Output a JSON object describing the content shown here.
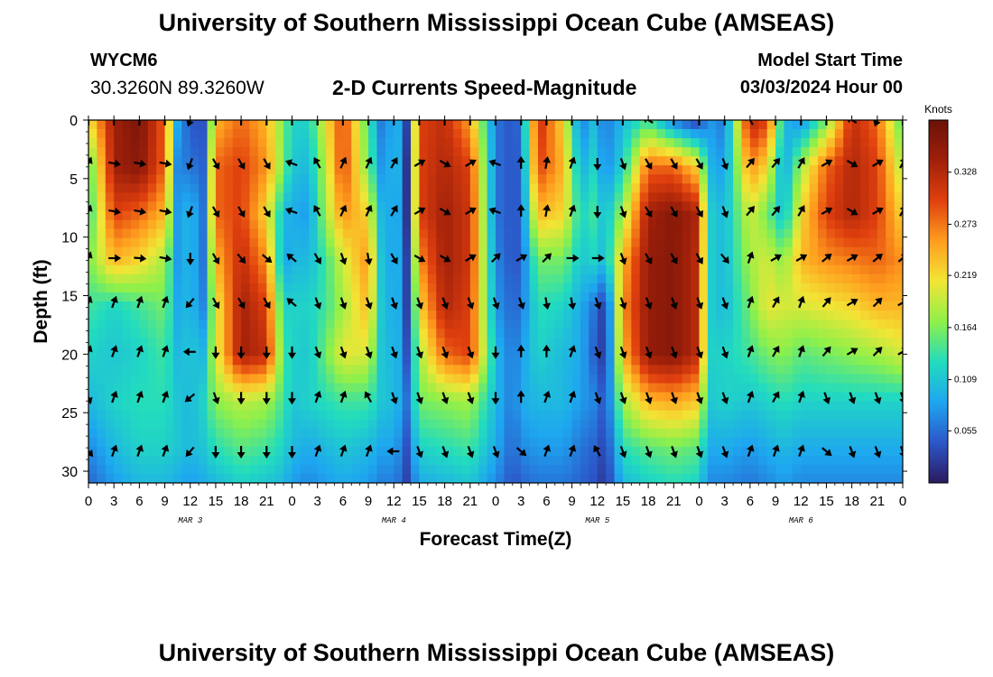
{
  "header": {
    "title": "University of Southern Mississippi Ocean Cube (AMSEAS)",
    "station_id": "WYCM6",
    "station_coords": "30.3260N  89.3260W",
    "chart_title": "2-D Currents Speed-Magnitude",
    "start_label": "Model Start Time",
    "start_value": "03/03/2024 Hour 00"
  },
  "footer": {
    "title": "University of Southern Mississippi Ocean Cube (AMSEAS)"
  },
  "chart_data": {
    "type": "heatmap",
    "title": "2-D Currents Speed-Magnitude",
    "xlabel": "Forecast Time(Z)",
    "ylabel": "Depth (ft)",
    "x_ticks": [
      "0",
      "3",
      "6",
      "9",
      "12",
      "15",
      "18",
      "21",
      "0",
      "3",
      "6",
      "9",
      "12",
      "15",
      "18",
      "21",
      "0",
      "3",
      "6",
      "9",
      "12",
      "15",
      "18",
      "21",
      "0",
      "3",
      "6",
      "9",
      "12",
      "15",
      "18",
      "21",
      "0"
    ],
    "date_labels": [
      {
        "label": "MAR 3",
        "hour": 12
      },
      {
        "label": "MAR 4",
        "hour": 36
      },
      {
        "label": "MAR 5",
        "hour": 60
      },
      {
        "label": "MAR 6",
        "hour": 84
      }
    ],
    "xlim_hours": [
      0,
      96
    ],
    "ylim_ft": [
      0,
      31
    ],
    "y_ticks": [
      0,
      5,
      10,
      15,
      20,
      25,
      30
    ],
    "colorbar": {
      "label": "Knots",
      "range": [
        0.0,
        0.383
      ],
      "ticks": [
        "0.328",
        "0.273",
        "0.219",
        "0.164",
        "0.109",
        "0.055"
      ],
      "tick_values": [
        0.328,
        0.273,
        0.219,
        0.164,
        0.109,
        0.055
      ],
      "colormap": [
        "#2a1a5e",
        "#2c56c8",
        "#1ea6f0",
        "#22dcbe",
        "#8ef04a",
        "#f2e535",
        "#ff9d1e",
        "#e0400e",
        "#a0200a",
        "#6a1208"
      ]
    },
    "speed_knots": {
      "depth_ft": [
        0,
        4,
        8,
        12,
        16,
        20,
        24,
        28,
        31
      ],
      "hours": [
        0,
        3,
        6,
        9,
        10.5,
        12,
        13.5,
        15,
        18,
        21,
        23,
        24,
        26,
        28,
        30,
        33,
        35,
        36,
        37.5,
        39,
        42,
        45,
        48,
        50,
        51,
        53,
        56,
        58,
        59.5,
        61,
        63,
        66,
        69,
        72,
        73,
        75,
        78,
        80,
        82,
        84,
        87,
        90,
        93,
        96
      ],
      "values": [
        [
          0.21,
          0.34,
          0.37,
          0.28,
          0.09,
          0.04,
          0.04,
          0.24,
          0.28,
          0.24,
          0.16,
          0.12,
          0.12,
          0.21,
          0.3,
          0.14,
          0.04,
          0.12,
          0.03,
          0.3,
          0.32,
          0.25,
          0.06,
          0.04,
          0.06,
          0.32,
          0.22,
          0.06,
          0.1,
          0.06,
          0.1,
          0.14,
          0.06,
          0.02,
          0.08,
          0.06,
          0.33,
          0.3,
          0.1,
          0.07,
          0.16,
          0.32,
          0.28,
          0.14
        ],
        [
          0.14,
          0.34,
          0.36,
          0.28,
          0.07,
          0.06,
          0.05,
          0.28,
          0.3,
          0.26,
          0.16,
          0.11,
          0.1,
          0.19,
          0.3,
          0.16,
          0.05,
          0.13,
          0.02,
          0.3,
          0.33,
          0.3,
          0.06,
          0.04,
          0.05,
          0.3,
          0.24,
          0.09,
          0.12,
          0.07,
          0.12,
          0.28,
          0.28,
          0.22,
          0.1,
          0.08,
          0.26,
          0.22,
          0.08,
          0.18,
          0.28,
          0.33,
          0.3,
          0.18
        ],
        [
          0.13,
          0.3,
          0.28,
          0.24,
          0.08,
          0.1,
          0.06,
          0.28,
          0.3,
          0.22,
          0.1,
          0.09,
          0.08,
          0.18,
          0.26,
          0.22,
          0.06,
          0.12,
          0.02,
          0.3,
          0.34,
          0.31,
          0.06,
          0.04,
          0.05,
          0.24,
          0.22,
          0.12,
          0.14,
          0.1,
          0.18,
          0.34,
          0.36,
          0.33,
          0.12,
          0.1,
          0.2,
          0.16,
          0.1,
          0.22,
          0.3,
          0.33,
          0.3,
          0.22
        ],
        [
          0.16,
          0.24,
          0.22,
          0.18,
          0.08,
          0.1,
          0.06,
          0.24,
          0.32,
          0.26,
          0.08,
          0.1,
          0.1,
          0.14,
          0.2,
          0.26,
          0.06,
          0.12,
          0.03,
          0.26,
          0.34,
          0.31,
          0.07,
          0.04,
          0.05,
          0.16,
          0.16,
          0.11,
          0.12,
          0.1,
          0.24,
          0.35,
          0.36,
          0.32,
          0.12,
          0.1,
          0.18,
          0.2,
          0.17,
          0.24,
          0.26,
          0.27,
          0.28,
          0.26
        ],
        [
          0.14,
          0.12,
          0.14,
          0.16,
          0.09,
          0.1,
          0.07,
          0.2,
          0.34,
          0.3,
          0.12,
          0.12,
          0.12,
          0.14,
          0.18,
          0.24,
          0.07,
          0.12,
          0.03,
          0.22,
          0.33,
          0.3,
          0.08,
          0.05,
          0.06,
          0.13,
          0.12,
          0.09,
          0.06,
          0.02,
          0.26,
          0.35,
          0.36,
          0.32,
          0.12,
          0.1,
          0.16,
          0.21,
          0.2,
          0.2,
          0.21,
          0.22,
          0.24,
          0.24
        ],
        [
          0.12,
          0.11,
          0.12,
          0.14,
          0.1,
          0.11,
          0.1,
          0.2,
          0.34,
          0.32,
          0.14,
          0.12,
          0.11,
          0.16,
          0.21,
          0.2,
          0.08,
          0.12,
          0.04,
          0.18,
          0.28,
          0.3,
          0.1,
          0.06,
          0.08,
          0.12,
          0.1,
          0.09,
          0.05,
          0.02,
          0.24,
          0.35,
          0.36,
          0.32,
          0.12,
          0.12,
          0.14,
          0.16,
          0.17,
          0.15,
          0.16,
          0.17,
          0.18,
          0.2
        ],
        [
          0.1,
          0.12,
          0.13,
          0.13,
          0.11,
          0.1,
          0.12,
          0.17,
          0.19,
          0.18,
          0.14,
          0.11,
          0.12,
          0.13,
          0.14,
          0.14,
          0.1,
          0.11,
          0.06,
          0.16,
          0.17,
          0.18,
          0.1,
          0.06,
          0.09,
          0.1,
          0.1,
          0.08,
          0.07,
          0.04,
          0.18,
          0.24,
          0.25,
          0.23,
          0.11,
          0.12,
          0.11,
          0.12,
          0.13,
          0.12,
          0.12,
          0.12,
          0.12,
          0.12
        ],
        [
          0.07,
          0.1,
          0.12,
          0.12,
          0.11,
          0.1,
          0.11,
          0.13,
          0.15,
          0.14,
          0.12,
          0.1,
          0.09,
          0.1,
          0.11,
          0.1,
          0.08,
          0.09,
          0.04,
          0.12,
          0.13,
          0.14,
          0.09,
          0.05,
          0.07,
          0.08,
          0.08,
          0.06,
          0.05,
          0.03,
          0.13,
          0.15,
          0.16,
          0.15,
          0.09,
          0.09,
          0.08,
          0.09,
          0.1,
          0.09,
          0.09,
          0.09,
          0.09,
          0.09
        ],
        [
          0.05,
          0.08,
          0.1,
          0.1,
          0.09,
          0.08,
          0.09,
          0.1,
          0.12,
          0.11,
          0.1,
          0.08,
          0.07,
          0.08,
          0.09,
          0.08,
          0.06,
          0.07,
          0.03,
          0.09,
          0.1,
          0.11,
          0.07,
          0.04,
          0.05,
          0.06,
          0.06,
          0.05,
          0.04,
          0.02,
          0.1,
          0.12,
          0.13,
          0.12,
          0.07,
          0.07,
          0.06,
          0.07,
          0.08,
          0.07,
          0.07,
          0.07,
          0.07,
          0.07
        ]
      ]
    },
    "current_direction_deg": {
      "depth_ft": [
        0,
        3.7,
        7.8,
        11.8,
        15.6,
        19.8,
        23.7,
        28.3
      ],
      "hours": [
        0,
        3,
        6,
        9,
        12,
        15,
        18,
        21,
        24,
        27,
        30,
        33,
        36,
        39,
        42,
        45,
        48,
        51,
        54,
        57,
        60,
        63,
        66,
        69,
        72,
        75,
        78,
        81,
        84,
        87,
        90,
        93,
        96
      ],
      "rows": [
        [
          0,
          0,
          0,
          0,
          200,
          0,
          0,
          0,
          0,
          0,
          0,
          0,
          0,
          0,
          0,
          0,
          0,
          0,
          0,
          0,
          0,
          0,
          300,
          0,
          0,
          0,
          330,
          0,
          0,
          0,
          300,
          200,
          0
        ],
        [
          25,
          100,
          100,
          100,
          200,
          150,
          150,
          150,
          290,
          330,
          25,
          25,
          30,
          60,
          120,
          60,
          290,
          0,
          10,
          20,
          180,
          160,
          150,
          150,
          150,
          160,
          40,
          40,
          30,
          60,
          120,
          60,
          30
        ],
        [
          20,
          100,
          100,
          100,
          200,
          150,
          150,
          150,
          290,
          330,
          25,
          25,
          30,
          60,
          120,
          60,
          290,
          0,
          10,
          20,
          180,
          160,
          150,
          150,
          150,
          160,
          40,
          40,
          30,
          60,
          120,
          60,
          30
        ],
        [
          20,
          90,
          95,
          100,
          180,
          150,
          140,
          130,
          310,
          150,
          160,
          170,
          150,
          120,
          120,
          60,
          45,
          60,
          45,
          90,
          90,
          160,
          150,
          150,
          150,
          140,
          20,
          60,
          60,
          50,
          60,
          50,
          50
        ],
        [
          20,
          20,
          20,
          20,
          220,
          150,
          150,
          150,
          310,
          160,
          160,
          160,
          160,
          160,
          160,
          160,
          160,
          160,
          170,
          170,
          160,
          160,
          160,
          160,
          160,
          160,
          20,
          30,
          20,
          40,
          60,
          45,
          60
        ],
        [
          20,
          20,
          20,
          20,
          270,
          180,
          180,
          180,
          180,
          160,
          160,
          160,
          160,
          160,
          160,
          160,
          180,
          0,
          0,
          20,
          160,
          160,
          160,
          160,
          160,
          160,
          20,
          30,
          20,
          40,
          60,
          45,
          60
        ],
        [
          160,
          20,
          20,
          20,
          230,
          160,
          180,
          180,
          180,
          20,
          20,
          330,
          160,
          160,
          160,
          160,
          180,
          0,
          20,
          20,
          160,
          160,
          160,
          160,
          160,
          160,
          20,
          30,
          20,
          160,
          160,
          160,
          160
        ],
        [
          140,
          20,
          20,
          20,
          220,
          180,
          180,
          180,
          180,
          20,
          20,
          20,
          270,
          160,
          160,
          160,
          160,
          130,
          20,
          20,
          330,
          160,
          160,
          160,
          160,
          160,
          20,
          20,
          20,
          130,
          160,
          160,
          160
        ]
      ]
    }
  }
}
